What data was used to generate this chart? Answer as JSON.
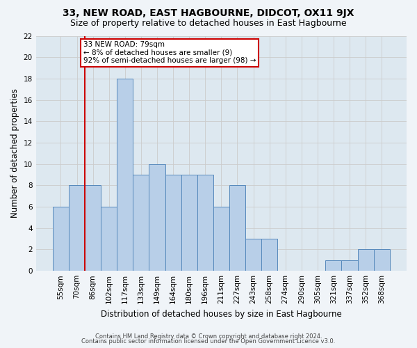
{
  "title": "33, NEW ROAD, EAST HAGBOURNE, DIDCOT, OX11 9JX",
  "subtitle": "Size of property relative to detached houses in East Hagbourne",
  "xlabel": "Distribution of detached houses by size in East Hagbourne",
  "ylabel": "Number of detached properties",
  "categories": [
    "55sqm",
    "70sqm",
    "86sqm",
    "102sqm",
    "117sqm",
    "133sqm",
    "149sqm",
    "164sqm",
    "180sqm",
    "196sqm",
    "211sqm",
    "227sqm",
    "243sqm",
    "258sqm",
    "274sqm",
    "290sqm",
    "305sqm",
    "321sqm",
    "337sqm",
    "352sqm",
    "368sqm"
  ],
  "values": [
    6,
    8,
    8,
    6,
    18,
    9,
    10,
    9,
    9,
    9,
    6,
    8,
    3,
    3,
    0,
    0,
    0,
    1,
    1,
    2,
    2
  ],
  "bar_color": "#b8cfe8",
  "bar_edge_color": "#5588bb",
  "vline_x_idx": 1,
  "vline_color": "#cc0000",
  "annotation_line1": "33 NEW ROAD: 79sqm",
  "annotation_line2": "← 8% of detached houses are smaller (9)",
  "annotation_line3": "92% of semi-detached houses are larger (98) →",
  "annotation_box_color": "#ffffff",
  "annotation_box_edge": "#cc0000",
  "ylim": [
    0,
    22
  ],
  "yticks": [
    0,
    2,
    4,
    6,
    8,
    10,
    12,
    14,
    16,
    18,
    20,
    22
  ],
  "grid_color": "#cccccc",
  "bg_color": "#dde8f0",
  "fig_bg_color": "#f0f4f8",
  "footer1": "Contains HM Land Registry data © Crown copyright and database right 2024.",
  "footer2": "Contains public sector information licensed under the Open Government Licence v3.0.",
  "title_fontsize": 10,
  "subtitle_fontsize": 9,
  "xlabel_fontsize": 8.5,
  "ylabel_fontsize": 8.5,
  "tick_fontsize": 7.5,
  "annotation_fontsize": 7.5,
  "footer_fontsize": 6
}
